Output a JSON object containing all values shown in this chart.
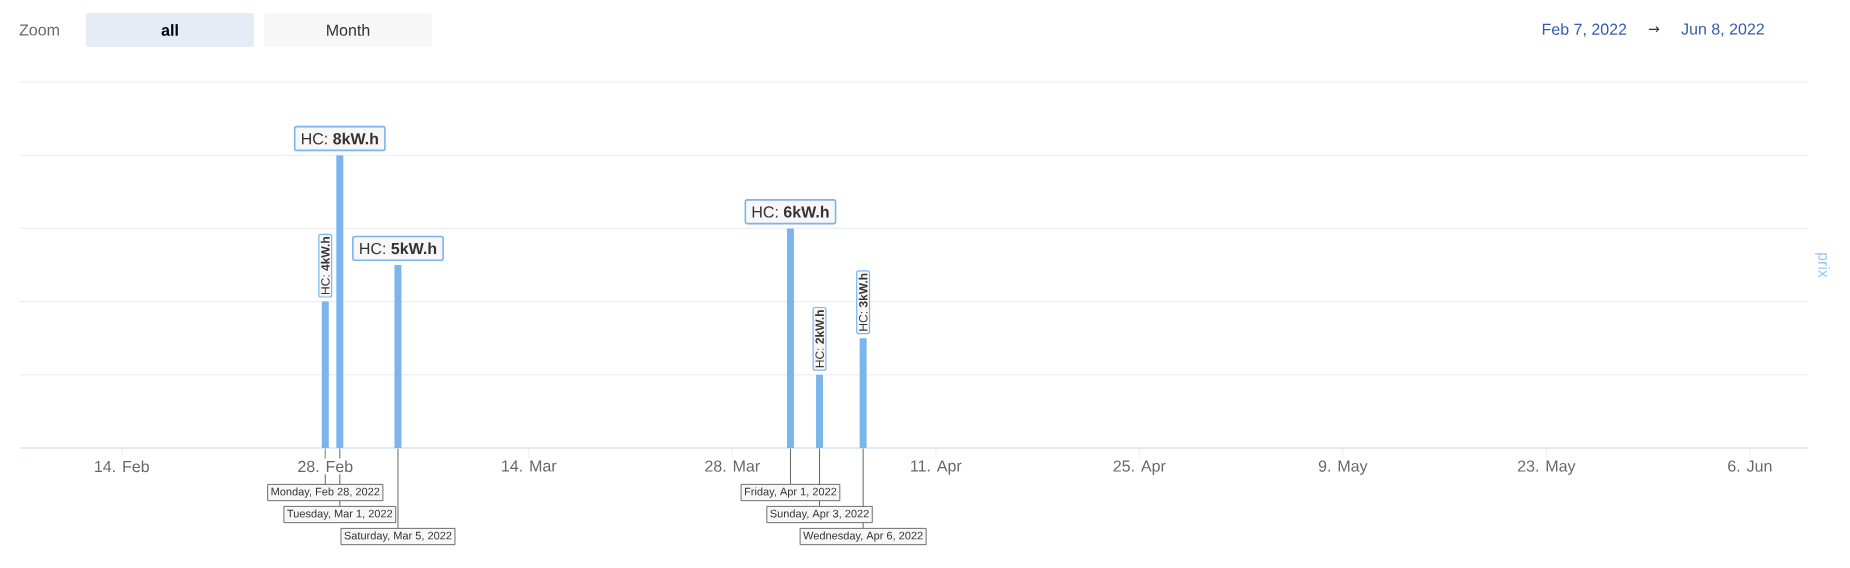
{
  "chart_data": {
    "type": "bar",
    "x": [
      "2022-02-28",
      "2022-03-01",
      "2022-03-05",
      "2022-04-01",
      "2022-04-03",
      "2022-04-06"
    ],
    "series": [
      {
        "color": "#7cb5ec",
        "values": [
          4,
          8,
          5,
          6,
          2,
          3
        ],
        "value_labels": [
          "HC: **4kW.h**",
          "HC: **8kW.h**",
          "HC: **5kW.h**",
          "HC: **6kW.h**",
          "HC: **2kW.h**",
          "HC: **3kW.h**"
        ]
      }
    ],
    "ylabel": "prix",
    "xlim": [
      "2022-02-07",
      "2022-06-10"
    ],
    "xticks": [
      {
        "value": "2022-02-14",
        "label": "14. Feb"
      },
      {
        "value": "2022-02-28",
        "label": "28. Feb"
      },
      {
        "value": "2022-03-14",
        "label": "14. Mar"
      },
      {
        "value": "2022-03-28",
        "label": "28. Mar"
      },
      {
        "value": "2022-04-11",
        "label": "11. Apr"
      },
      {
        "value": "2022-04-25",
        "label": "25. Apr"
      },
      {
        "value": "2022-05-09",
        "label": "9. May"
      },
      {
        "value": "2022-05-23",
        "label": "23. May"
      },
      {
        "value": "2022-06-06",
        "label": "6. Jun"
      }
    ],
    "ylim": [
      0,
      10
    ],
    "yticks": [
      {
        "value": 0,
        "label": null
      },
      {
        "value": 2,
        "label": null
      },
      {
        "value": 4,
        "label": null
      },
      {
        "value": 6,
        "label": null
      },
      {
        "value": 8,
        "label": null
      },
      {
        "value": 10,
        "label": null
      }
    ],
    "grid": "y",
    "tick_labels": "x",
    "annotations": [
      "Zoom",
      "all",
      "Month",
      "Feb 7, 2022",
      "→",
      "Jun 8, 2022",
      {
        "text": "Monday, Feb 28, 2022",
        "x": "2022-02-28",
        "y": 0
      },
      {
        "text": "Tuesday, Mar 1, 2022",
        "x": "2022-03-01",
        "y": 0
      },
      {
        "text": "Saturday, Mar 5, 2022",
        "x": "2022-03-05",
        "y": 0
      },
      {
        "text": "Friday, Apr 1, 2022",
        "x": "2022-04-01",
        "y": 0
      },
      {
        "text": "Sunday, Apr 3, 2022",
        "x": "2022-04-03",
        "y": 0
      },
      {
        "text": "Wednesday, Apr 6, 2022",
        "x": "2022-04-06",
        "y": 0
      }
    ]
  }
}
